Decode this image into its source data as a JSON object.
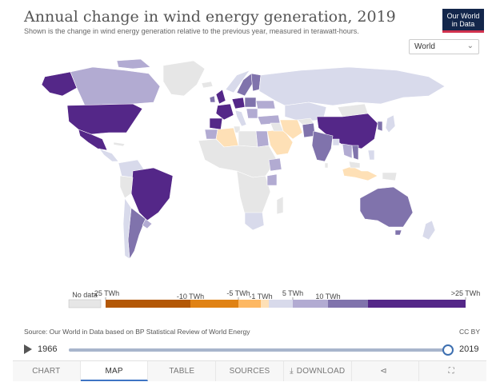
{
  "header": {
    "title": "Annual change in wind energy generation, 2019",
    "subtitle": "Shown is the change in wind energy generation relative to the previous year, measured in terawatt-hours."
  },
  "logo": {
    "line1": "Our World",
    "line2": "in Data",
    "bg": "#13264b",
    "accent": "#d1324e"
  },
  "region_select": {
    "value": "World",
    "icon": "chevron-down-icon"
  },
  "legend": {
    "no_data_label": "No data",
    "upper_labels": [
      "-25 TWh",
      "-5 TWh",
      "5 TWh",
      ">25 TWh"
    ],
    "lower_labels": [
      "-10 TWh",
      "-1 TWh",
      "10 TWh"
    ],
    "colors": [
      "#b35806",
      "#e08214",
      "#fdb863",
      "#fee0b6",
      "#d8daeb",
      "#b2abd2",
      "#8073ac",
      "#542788"
    ],
    "no_data_color": "#e6e6e6"
  },
  "source": "Source: Our World in Data based on BP Statistical Review of World Energy",
  "license": "CC BY",
  "timeline": {
    "start_year": "1966",
    "end_year": "2019",
    "position_fraction": 1.0
  },
  "tabs": [
    {
      "label": "CHART",
      "active": false
    },
    {
      "label": "MAP",
      "active": true
    },
    {
      "label": "TABLE",
      "active": false
    },
    {
      "label": "SOURCES",
      "active": false
    },
    {
      "label": "DOWNLOAD",
      "active": false,
      "icon": "download-icon"
    },
    {
      "label": "",
      "active": false,
      "icon": "share-icon"
    },
    {
      "label": "",
      "active": false,
      "icon": "fullscreen-icon"
    }
  ],
  "chart_data": {
    "type": "choropleth",
    "title": "Annual change in wind energy generation, 2019",
    "unit": "TWh",
    "year": "2019",
    "bins": [
      "-25 TWh",
      "-10 TWh",
      "-5 TWh",
      "-1 TWh",
      "5 TWh",
      "10 TWh",
      ">25 TWh"
    ],
    "regions": [
      {
        "name": "Canada",
        "bin": ">5 TWh"
      },
      {
        "name": "Alaska",
        "bin": ">25 TWh"
      },
      {
        "name": "United States",
        "bin": ">25 TWh"
      },
      {
        "name": "Mexico",
        "bin": ">25 TWh"
      },
      {
        "name": "Brazil",
        "bin": ">25 TWh"
      },
      {
        "name": "Argentina",
        "bin": "5 to 10 TWh"
      },
      {
        "name": "Chile",
        "bin": "1 to 5 TWh"
      },
      {
        "name": "United Kingdom",
        "bin": ">25 TWh"
      },
      {
        "name": "France",
        "bin": ">25 TWh"
      },
      {
        "name": "Spain",
        "bin": ">25 TWh"
      },
      {
        "name": "Germany",
        "bin": ">25 TWh"
      },
      {
        "name": "Sweden",
        "bin": "10 to 25 TWh"
      },
      {
        "name": "Russia",
        "bin": "1 to 5 TWh"
      },
      {
        "name": "Algeria",
        "bin": "-5 to -1 TWh"
      },
      {
        "name": "Egypt",
        "bin": "5 to 10 TWh"
      },
      {
        "name": "Saudi Arabia",
        "bin": "-5 to -1 TWh"
      },
      {
        "name": "Iran",
        "bin": "-5 to -1 TWh"
      },
      {
        "name": "India",
        "bin": "10 to 25 TWh"
      },
      {
        "name": "China",
        "bin": ">25 TWh"
      },
      {
        "name": "Indonesia",
        "bin": "-5 to -1 TWh"
      },
      {
        "name": "Australia",
        "bin": "5 to 10 TWh"
      },
      {
        "name": "New Zealand",
        "bin": "1 to 5 TWh"
      },
      {
        "name": "South Africa",
        "bin": "1 to 5 TWh"
      }
    ]
  }
}
